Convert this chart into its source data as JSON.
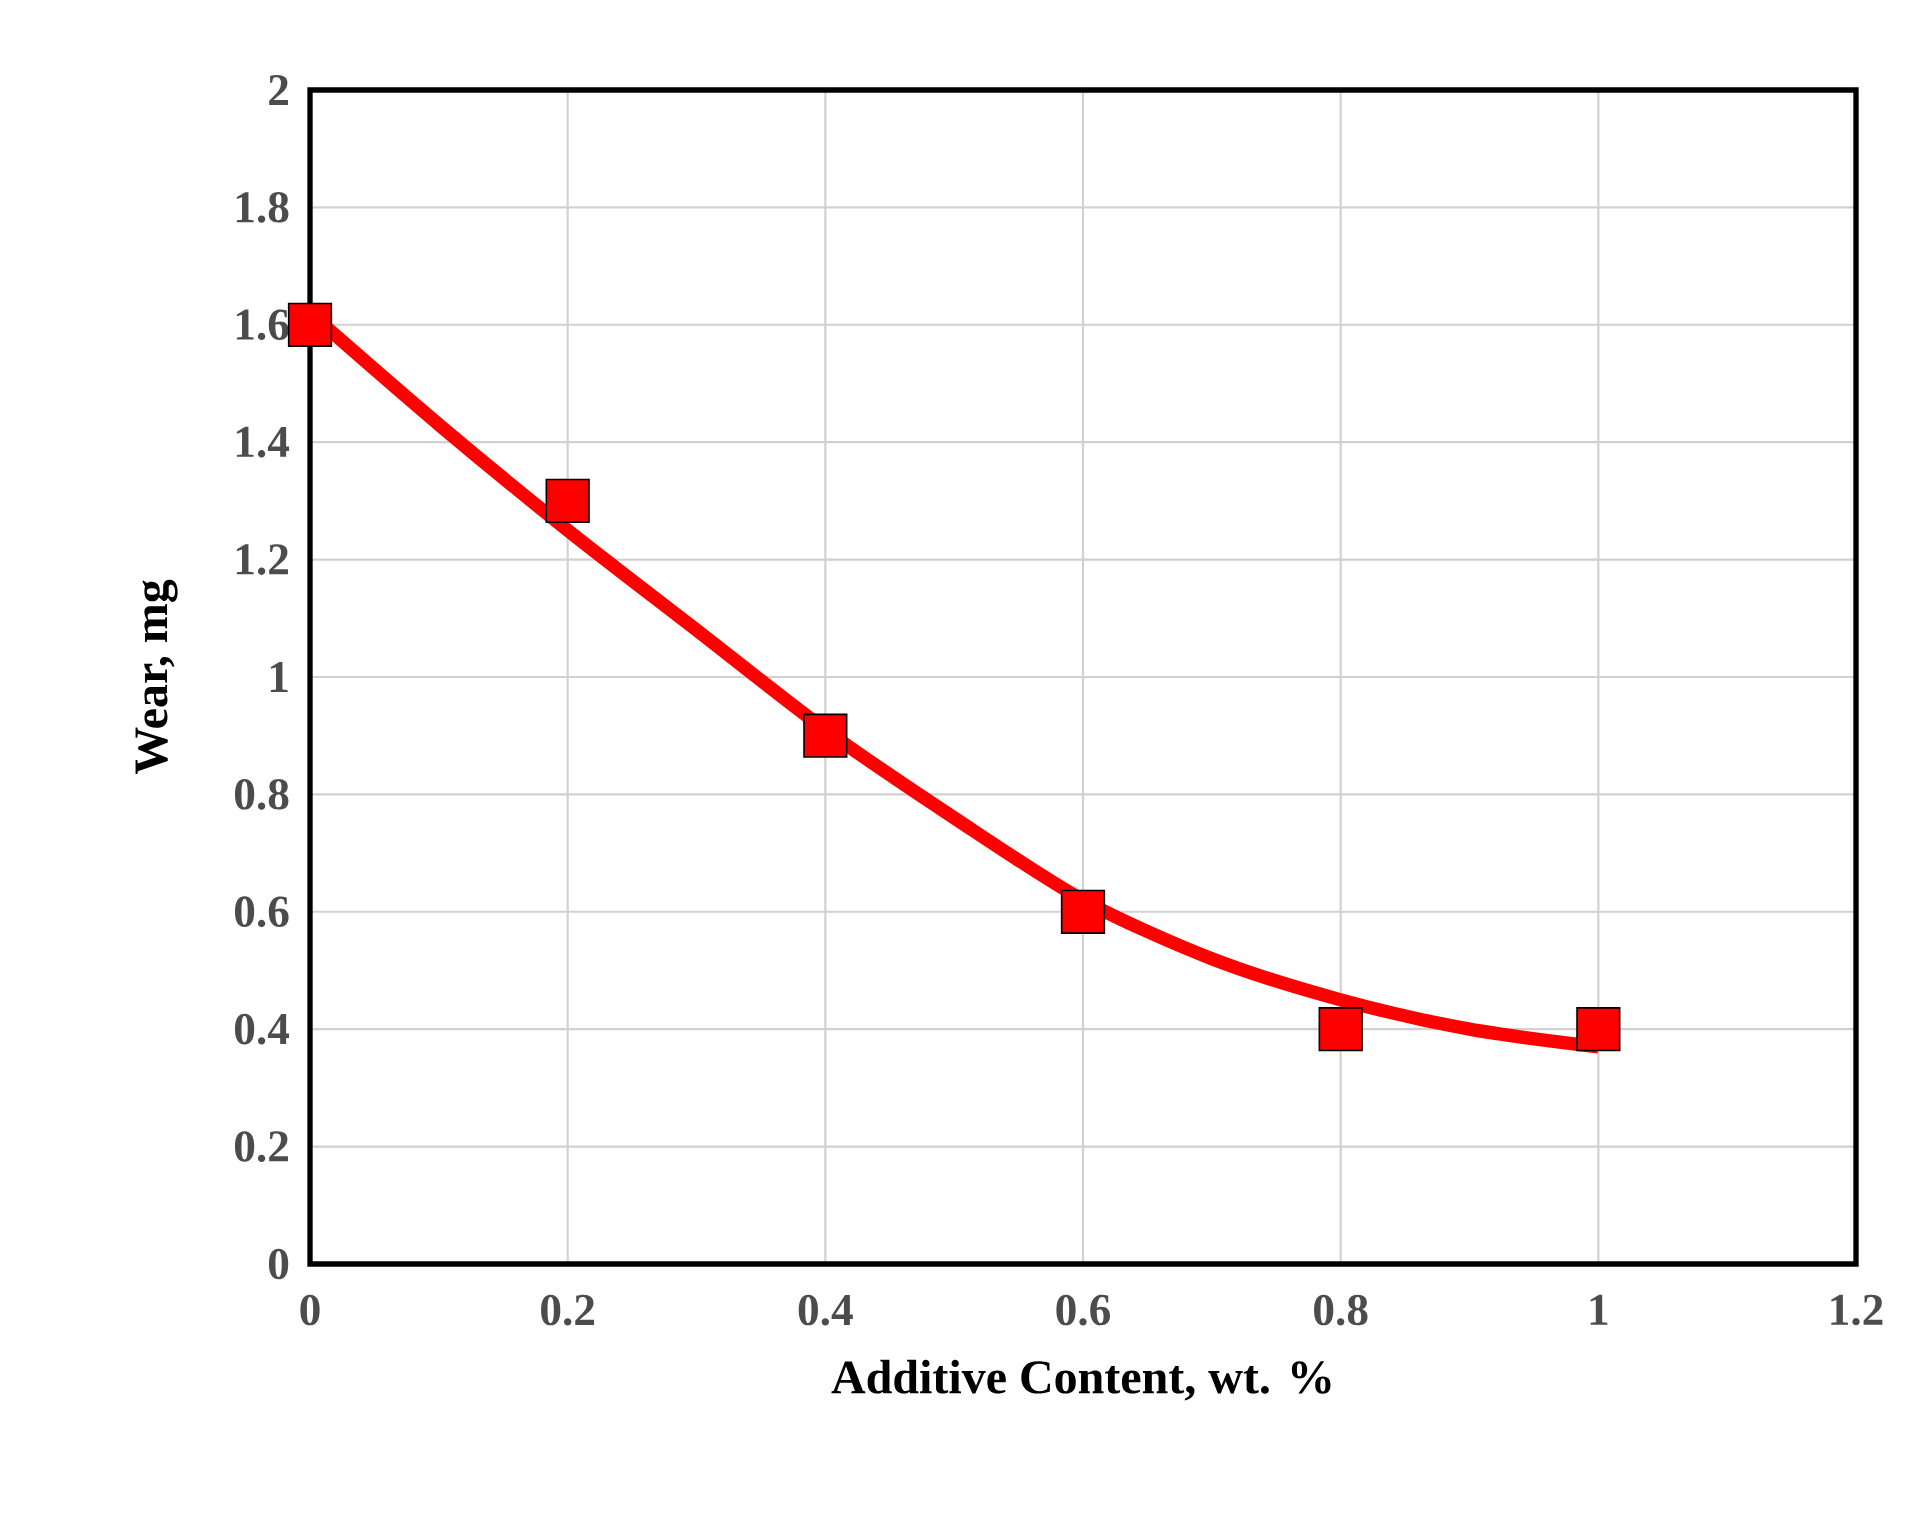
{
  "chart_data": {
    "type": "scatter",
    "xlabel": "Additive Content, wt. %",
    "ylabel": "Wear, mg",
    "xlim": [
      0,
      1.2
    ],
    "xticks": [
      0,
      0.2,
      0.4,
      0.6,
      0.8,
      1,
      1.2
    ],
    "ylim": [
      0,
      2
    ],
    "yticks": [
      0,
      0.2,
      0.4,
      0.6,
      0.8,
      1,
      1.2,
      1.4,
      1.6,
      1.8,
      2
    ],
    "grid": true,
    "series": [
      {
        "type": "line",
        "color": "#ff0000",
        "marker": "none",
        "x": [
          0,
          0.1,
          0.2,
          0.3,
          0.4,
          0.5,
          0.6,
          0.7,
          0.8,
          0.9,
          1
        ],
        "values": [
          1.62,
          1.43,
          1.25,
          1.08,
          0.91,
          0.76,
          0.62,
          0.52,
          0.45,
          0.4,
          0.37
        ]
      },
      {
        "color": "#ff0000",
        "marker": "square",
        "x": [
          0,
          0.2,
          0.4,
          0.6,
          0.8,
          1
        ],
        "values": [
          1.6,
          1.3,
          0.9,
          0.6,
          0.4,
          0.4
        ]
      }
    ]
  }
}
